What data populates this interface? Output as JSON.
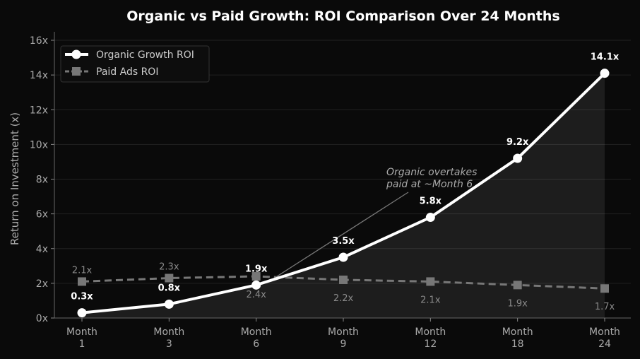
{
  "chart_data": {
    "type": "line",
    "title": "Organic vs Paid Growth: ROI Comparison Over 24 Months",
    "xlabel": "",
    "ylabel": "Return on Investment (x)",
    "categories": [
      "Month\n1",
      "Month\n3",
      "Month\n6",
      "Month\n9",
      "Month\n12",
      "Month\n18",
      "Month\n24"
    ],
    "ylim": [
      0,
      16
    ],
    "yticks": [
      0,
      2,
      4,
      6,
      8,
      10,
      12,
      14,
      16
    ],
    "ytick_suffix": "x",
    "grid": true,
    "legend_position": "top-left",
    "series": [
      {
        "name": "Organic Growth ROI",
        "values": [
          0.3,
          0.8,
          1.9,
          3.5,
          5.8,
          9.2,
          14.1
        ],
        "labels": [
          "0.3x",
          "0.8x",
          "1.9x",
          "3.5x",
          "5.8x",
          "9.2x",
          "14.1x"
        ],
        "color": "#ffffff",
        "style": "solid",
        "marker": "circle"
      },
      {
        "name": "Paid Ads ROI",
        "values": [
          2.1,
          2.3,
          2.4,
          2.2,
          2.1,
          1.9,
          1.7
        ],
        "labels": [
          "2.1x",
          "2.3x",
          "2.4x",
          "2.2x",
          "2.1x",
          "1.9x",
          "1.7x"
        ],
        "color": "#777777",
        "style": "dashed",
        "marker": "square"
      }
    ],
    "annotation": {
      "text_lines": [
        "Organic overtakes",
        "paid at ~Month 6"
      ],
      "points_to_category": 2
    }
  }
}
